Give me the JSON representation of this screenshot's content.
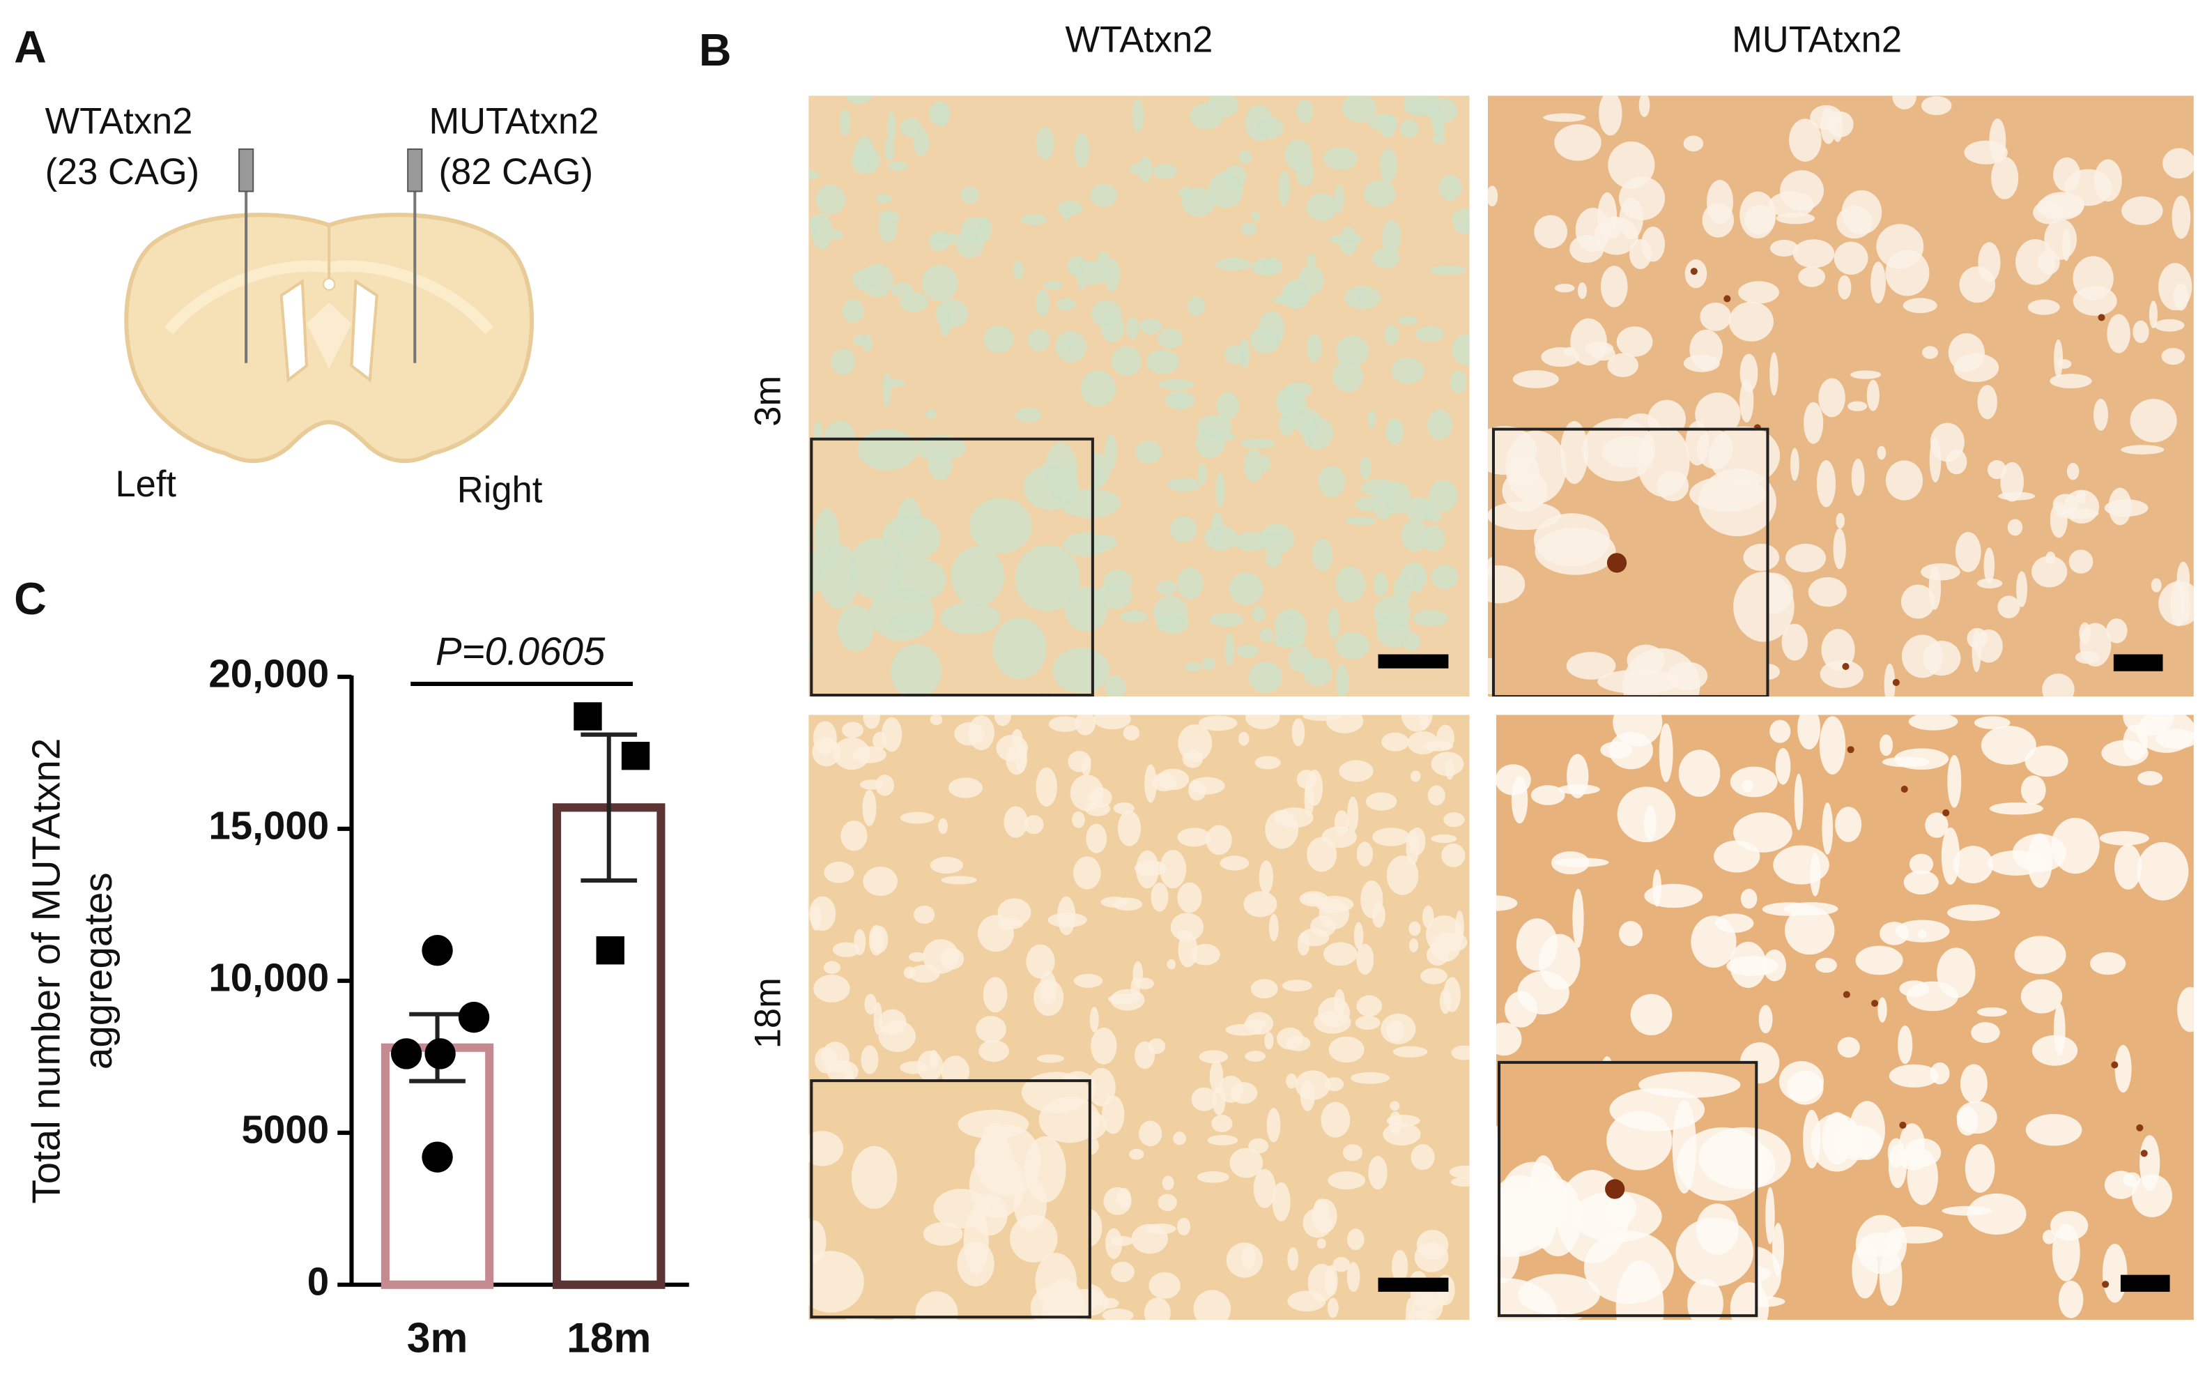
{
  "panel_a": {
    "label": "A",
    "left_injection": [
      "WTAtxn2",
      "(23 CAG)"
    ],
    "right_injection": [
      "MUTAtxn2",
      "(82 CAG)"
    ],
    "left": "Left",
    "right": "Right"
  },
  "panel_b": {
    "label": "B",
    "columns": [
      "WTAtxn2",
      "MUTAtxn2"
    ],
    "rows": [
      "3m",
      "18m"
    ]
  },
  "panel_c": {
    "label": "C"
  },
  "chart_data": {
    "type": "bar",
    "ylabel": [
      "Total number of MUTAtxn2",
      "aggregates"
    ],
    "categories": [
      "3m",
      "18m"
    ],
    "values": [
      7800,
      15700
    ],
    "errors": [
      1100,
      2400
    ],
    "points": [
      [
        11000,
        8800,
        7600,
        7600,
        4200
      ],
      [
        18700,
        17400,
        11000
      ]
    ],
    "point_shapes": [
      "circle",
      "square"
    ],
    "colors": [
      "#c48a90",
      "#5c3434"
    ],
    "annotation": "P=0.0605",
    "ylim": [
      0,
      20000
    ],
    "yticks": [
      0,
      5000,
      {
        "value": 10000,
        "label": "10,000"
      },
      {
        "value": 15000,
        "label": "15,000"
      },
      {
        "value": 20000,
        "label": "20,000"
      }
    ]
  }
}
